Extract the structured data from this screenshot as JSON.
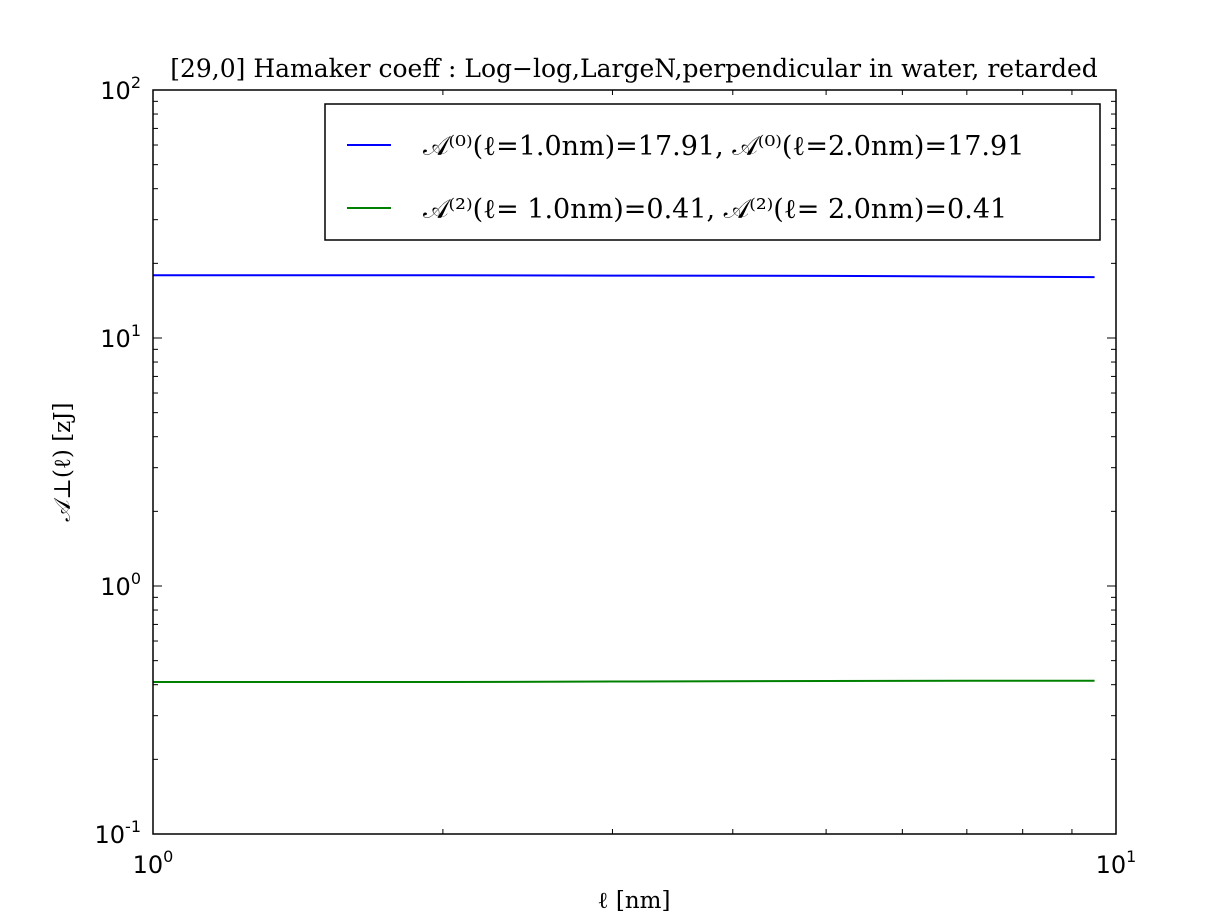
{
  "chart_data": {
    "type": "line",
    "title": "[29,0]  Hamaker coeff : Log−log,LargeN,perpendicular in water, retarded",
    "xlabel": "ℓ   [nm]",
    "ylabel": "𝒜⊥(ℓ)   [zJ]",
    "xscale": "log",
    "yscale": "log",
    "xlim": [
      1,
      10
    ],
    "ylim": [
      0.1,
      100
    ],
    "x_ticks": [
      {
        "base": "10",
        "exp": "0",
        "value": 1
      },
      {
        "base": "10",
        "exp": "1",
        "value": 10
      }
    ],
    "y_ticks": [
      {
        "base": "10",
        "exp": "-1",
        "value": 0.1
      },
      {
        "base": "10",
        "exp": "0",
        "value": 1
      },
      {
        "base": "10",
        "exp": "1",
        "value": 10
      },
      {
        "base": "10",
        "exp": "2",
        "value": 100
      }
    ],
    "grid": false,
    "legend_position": "top-right",
    "series": [
      {
        "name": "𝒜⁽⁰⁾(ℓ=1.0nm)=17.91,   𝒜⁽⁰⁾(ℓ=2.0nm)=17.91",
        "color": "#0000ff",
        "x": [
          1.0,
          2.0,
          3.0,
          5.0,
          7.0,
          9.5
        ],
        "y": [
          17.91,
          17.91,
          17.85,
          17.8,
          17.7,
          17.6
        ]
      },
      {
        "name": "𝒜⁽²⁾(ℓ= 1.0nm)=0.41,   𝒜⁽²⁾(ℓ= 2.0nm)=0.41",
        "color": "#008000",
        "x": [
          1.0,
          2.0,
          3.0,
          5.0,
          7.0,
          9.5
        ],
        "y": [
          0.41,
          0.41,
          0.412,
          0.414,
          0.415,
          0.415
        ]
      }
    ]
  }
}
